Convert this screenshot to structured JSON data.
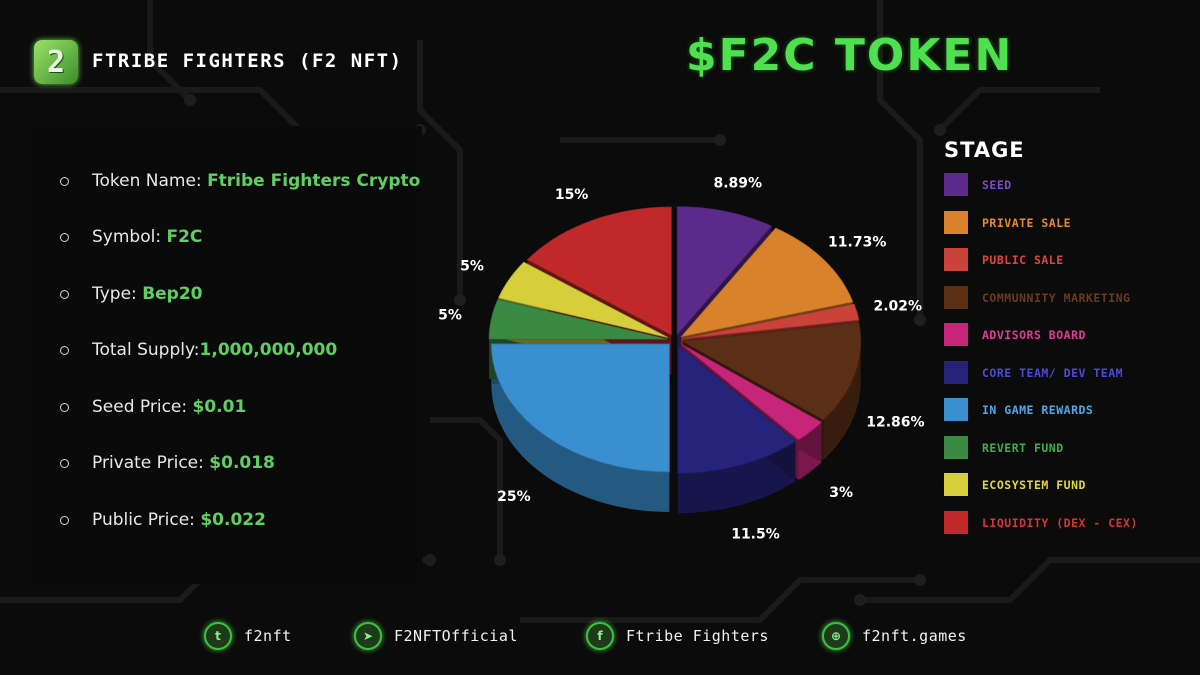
{
  "header": {
    "logo_text": "2",
    "brand": "FTRIBE FIGHTERS (F2 NFT)",
    "token_title": "$F2C TOKEN"
  },
  "info": [
    {
      "label": "Token Name:",
      "value": "Ftribe Fighters Crypto"
    },
    {
      "label": "Symbol:",
      "value": "F2C"
    },
    {
      "label": "Type:",
      "value": "Bep20"
    },
    {
      "label": "Total Supply:",
      "value": "1,000,000,000"
    },
    {
      "label": "Seed Price:",
      "value": "$0.01"
    },
    {
      "label": "Private Price:",
      "value": "$0.018"
    },
    {
      "label": "Public Price:",
      "value": "$0.022"
    }
  ],
  "chart_data": {
    "type": "pie",
    "title": "STAGE",
    "legend_position": "right",
    "slices": [
      {
        "name": "SEED",
        "value": 8.89,
        "label": "8.89%",
        "color": "#5b2a8a"
      },
      {
        "name": "PRIVATE SALE",
        "value": 11.73,
        "label": "11.73%",
        "color": "#d9822b"
      },
      {
        "name": "PUBLIC SALE",
        "value": 2.02,
        "label": "2.02%",
        "color": "#c9433a"
      },
      {
        "name": "COMMUNNITY MARKETING",
        "value": 12.86,
        "label": "12.86%",
        "color": "#5a2f16"
      },
      {
        "name": "ADVISORS BOARD",
        "value": 3,
        "label": "3%",
        "color": "#c7257a"
      },
      {
        "name": "CORE TEAM/ DEV TEAM",
        "value": 11.5,
        "label": "11.5%",
        "color": "#25237a"
      },
      {
        "name": "IN GAME REWARDS",
        "value": 25,
        "label": "25%",
        "color": "#3a8fd0"
      },
      {
        "name": "REVERT FUND",
        "value": 5,
        "label": "5%",
        "color": "#3a8a43"
      },
      {
        "name": "ECOSYSTEM FUND",
        "value": 5,
        "label": "5%",
        "color": "#d6cf3b"
      },
      {
        "name": "LIQUIDITY (DEX - CEX)",
        "value": 15,
        "label": "15%",
        "color": "#c0282a"
      }
    ]
  },
  "legend_text_colors": [
    "#7b4bc9",
    "#e58a2e",
    "#e0453c",
    "#6a3a1f",
    "#e03b95",
    "#4a4ad6",
    "#4fa8e8",
    "#3fae4c",
    "#e3d63a",
    "#d63434"
  ],
  "footer": [
    {
      "icon": "twitter-icon",
      "glyph": "t",
      "label": "f2nft"
    },
    {
      "icon": "telegram-icon",
      "glyph": "➤",
      "label": "F2NFTOfficial"
    },
    {
      "icon": "facebook-icon",
      "glyph": "f",
      "label": "Ftribe Fighters"
    },
    {
      "icon": "globe-icon",
      "glyph": "⊕",
      "label": "f2nft.games"
    }
  ]
}
